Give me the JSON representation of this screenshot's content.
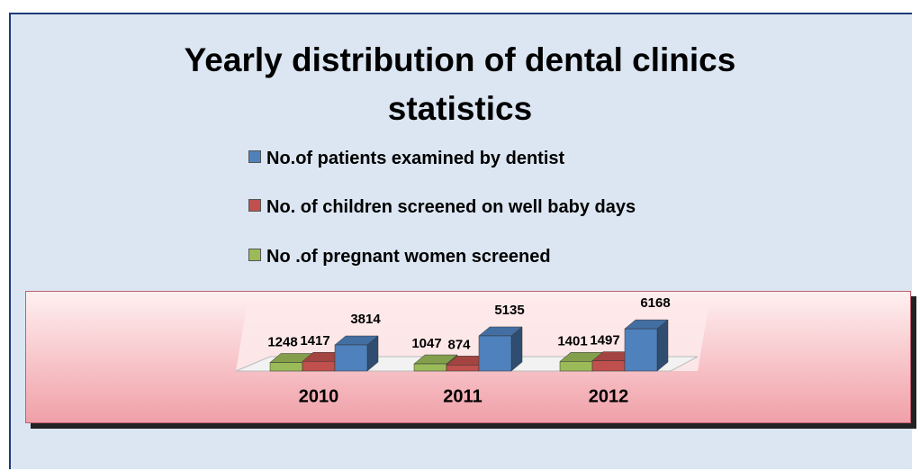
{
  "chart_data": {
    "type": "bar3d",
    "title": "Yearly distribution of dental clinics statistics",
    "categories": [
      "2010",
      "2011",
      "2012"
    ],
    "series": [
      {
        "name": "No.of patients examined by dentist",
        "color": "#4f81bd",
        "values": [
          3814,
          5135,
          6168
        ]
      },
      {
        "name": "No. of children screened on well baby days",
        "color": "#c0504d",
        "values": [
          1417,
          874,
          1497
        ]
      },
      {
        "name": "No .of pregnant women screened",
        "color": "#9bbb59",
        "values": [
          1248,
          1047,
          1401
        ]
      }
    ]
  }
}
